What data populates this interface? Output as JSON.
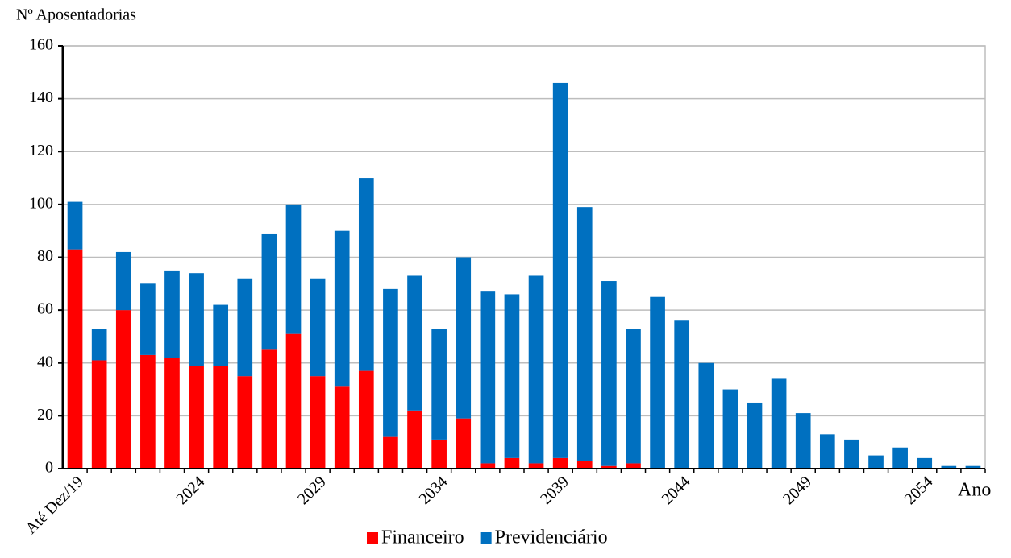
{
  "chart_data": {
    "type": "stacked-bar",
    "y_label": "Nº Aposentadorias",
    "x_label": "Ano",
    "categories": [
      "Até Dez/19",
      null,
      null,
      null,
      null,
      "2024",
      null,
      null,
      null,
      null,
      "2029",
      null,
      null,
      null,
      null,
      "2034",
      null,
      null,
      null,
      null,
      "2039",
      null,
      null,
      null,
      null,
      "2044",
      null,
      null,
      null,
      null,
      "2049",
      null,
      null,
      null,
      null,
      "2054",
      null,
      null
    ],
    "series": [
      {
        "name": "Financeiro",
        "color": "#ff0000",
        "values": [
          83,
          41,
          60,
          43,
          42,
          39,
          39,
          35,
          45,
          51,
          35,
          31,
          37,
          12,
          22,
          11,
          19,
          2,
          4,
          2,
          4,
          3,
          1,
          2,
          0,
          0,
          0,
          0,
          0,
          0,
          0,
          0,
          0,
          0,
          0,
          0,
          0,
          0
        ]
      },
      {
        "name": "Previdenciário",
        "color": "#0070c0",
        "values": [
          18,
          12,
          22,
          27,
          33,
          35,
          23,
          37,
          44,
          49,
          37,
          59,
          73,
          56,
          51,
          42,
          61,
          65,
          62,
          71,
          142,
          96,
          70,
          51,
          65,
          56,
          40,
          30,
          25,
          34,
          21,
          13,
          11,
          5,
          8,
          4,
          1,
          1
        ]
      }
    ],
    "ylim": [
      0,
      160
    ],
    "yticks": [
      0,
      20,
      40,
      60,
      80,
      100,
      120,
      140,
      160
    ],
    "grid": true
  }
}
